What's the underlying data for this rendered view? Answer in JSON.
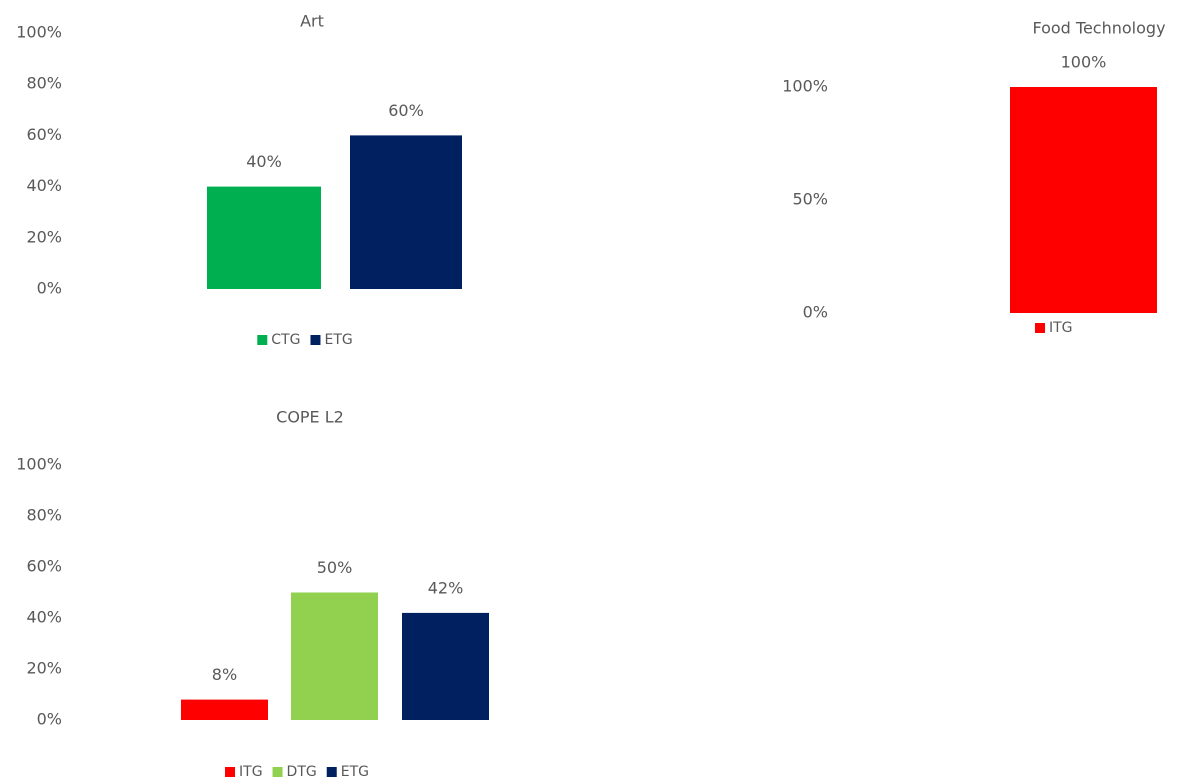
{
  "chart_data": [
    {
      "type": "bar",
      "title": "Art",
      "series": [
        {
          "name": "CTG",
          "color": "#00b050",
          "values": [
            40
          ],
          "value_labels": [
            "40%"
          ]
        },
        {
          "name": "ETG",
          "color": "#002060",
          "values": [
            60
          ],
          "value_labels": [
            "60%"
          ]
        }
      ],
      "ylim": [
        0,
        100
      ],
      "yticks": [
        {
          "value": 0,
          "label": "0%"
        },
        {
          "value": 20,
          "label": "20%"
        },
        {
          "value": 40,
          "label": "40%"
        },
        {
          "value": 60,
          "label": "60%"
        },
        {
          "value": 80,
          "label": "80%"
        },
        {
          "value": 100,
          "label": "100%"
        }
      ],
      "legend": "bottom"
    },
    {
      "type": "bar",
      "title": "Food Technology",
      "series": [
        {
          "name": "ITG",
          "color": "#ff0000",
          "values": [
            100
          ],
          "value_labels": [
            "100%"
          ]
        }
      ],
      "ylim": [
        0,
        100
      ],
      "yticks": [
        {
          "value": 0,
          "label": "0%"
        },
        {
          "value": 50,
          "label": "50%"
        },
        {
          "value": 100,
          "label": "100%"
        }
      ],
      "legend": "bottom"
    },
    {
      "type": "bar",
      "title": "COPE L2",
      "series": [
        {
          "name": "ITG",
          "color": "#ff0000",
          "values": [
            8
          ],
          "value_labels": [
            "8%"
          ]
        },
        {
          "name": "DTG",
          "color": "#92d050",
          "values": [
            50
          ],
          "value_labels": [
            "50%"
          ]
        },
        {
          "name": "ETG",
          "color": "#002060",
          "values": [
            42
          ],
          "value_labels": [
            "42%"
          ]
        }
      ],
      "ylim": [
        0,
        100
      ],
      "yticks": [
        {
          "value": 0,
          "label": "0%"
        },
        {
          "value": 20,
          "label": "20%"
        },
        {
          "value": 40,
          "label": "40%"
        },
        {
          "value": 60,
          "label": "60%"
        },
        {
          "value": 80,
          "label": "80%"
        },
        {
          "value": 100,
          "label": "100%"
        }
      ],
      "legend": "bottom"
    }
  ]
}
